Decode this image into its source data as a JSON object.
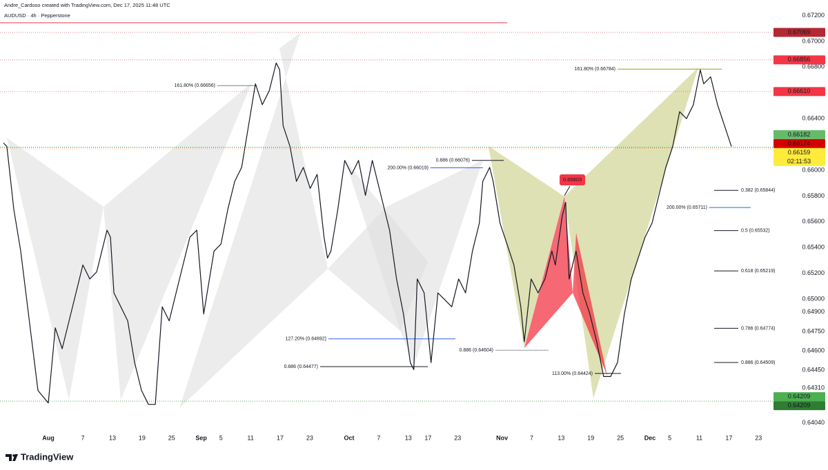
{
  "chart_data": {
    "type": "line",
    "title": "Andre_Cardoso created with TradingView.com, Dec 17, 2025 11:48 UTC",
    "brand": "TradingView",
    "x": [
      -9.1,
      -8.4,
      -7.0,
      -5.6,
      -3.5,
      -2.1,
      0,
      1.4,
      2.8,
      4.2,
      5.6,
      7.0,
      8.4,
      9.8,
      11.2,
      11.9,
      12.6,
      13.3,
      14.7,
      16.1,
      17.5,
      18.9,
      20.3,
      21.7,
      23.1,
      24.5,
      25.9,
      27.3,
      28.7,
      30.1,
      31.5,
      32.2,
      33.6,
      35.0,
      36.4,
      37.8,
      39.2,
      40.6,
      41.3,
      42.0,
      43.4,
      44.8,
      46.2,
      46.9,
      47.6,
      49.0,
      50.3,
      51.7,
      53.1,
      54.5,
      55.9,
      56.6,
      57.3,
      58.7,
      60.1,
      61.5,
      62.9,
      64.3,
      65.7,
      66.4,
      67.8,
      69.2,
      70.6,
      72.0,
      73.4,
      74.1,
      74.8,
      76.2,
      77.6,
      79.0,
      80.4,
      81.8,
      83.2,
      84.6,
      86.0,
      87.4,
      88.1,
      89.5,
      90.2,
      91.6,
      93.0,
      94.4,
      95.8,
      96.5,
      97.9,
      99.3,
      100.7,
      102.1,
      102.8,
      104.2,
      104.9,
      105.6,
      107.0,
      108.4,
      109.8,
      111.2,
      112.6,
      114.0,
      115.4,
      116.8,
      118.2,
      119.6,
      121.0,
      122.4,
      123.8,
      125.2,
      126.6,
      128.0,
      129.4,
      130.8,
      132.2,
      132.9,
      134.3,
      135.7,
      137.1,
      138.5
    ],
    "series": [
      {
        "name": "AUDUSD · 4h · Pepperstone",
        "color": "#131722",
        "values": [
          0.66211,
          0.66184,
          0.65697,
          0.65373,
          0.64724,
          0.64292,
          0.64195,
          0.64778,
          0.64616,
          0.64832,
          0.65049,
          0.65265,
          0.65157,
          0.65211,
          0.65427,
          0.65535,
          0.65481,
          0.65049,
          0.64941,
          0.64832,
          0.64508,
          0.64292,
          0.64184,
          0.64184,
          0.64941,
          0.64832,
          0.65049,
          0.65265,
          0.65481,
          0.65535,
          0.64886,
          0.65049,
          0.65373,
          0.65427,
          0.65697,
          0.65914,
          0.66022,
          0.66346,
          0.66508,
          0.6667,
          0.66508,
          0.66616,
          0.66832,
          0.66778,
          0.66346,
          0.66184,
          0.65914,
          0.66022,
          0.65859,
          0.65968,
          0.65481,
          0.65319,
          0.65373,
          0.65697,
          0.66076,
          0.65968,
          0.66076,
          0.65805,
          0.66076,
          0.65968,
          0.65751,
          0.65535,
          0.65157,
          0.64886,
          0.64508,
          0.64454,
          0.65157,
          0.65049,
          0.64508,
          0.65049,
          0.64995,
          0.64941,
          0.65157,
          0.65049,
          0.65373,
          0.65589,
          0.65914,
          0.66022,
          0.65914,
          0.65589,
          0.65427,
          0.65265,
          0.64941,
          0.6467,
          0.65157,
          0.65049,
          0.65157,
          0.65373,
          0.65265,
          0.65643,
          0.65751,
          0.65157,
          0.65373,
          0.65049,
          0.64886,
          0.6467,
          0.644,
          0.644,
          0.64508,
          0.64886,
          0.65157,
          0.65319,
          0.65481,
          0.65589,
          0.65805,
          0.66022,
          0.66184,
          0.66454,
          0.664,
          0.66508,
          0.66778,
          0.6667,
          0.66724,
          0.66508,
          0.66346,
          0.66184
        ]
      }
    ],
    "xlim": [
      -9.8,
      146.9
    ],
    "xticks": [
      {
        "value": 0,
        "label": "Aug"
      },
      7,
      13,
      19,
      25,
      {
        "value": 31,
        "label": "Sep"
      },
      {
        "value": 35,
        "label": "5"
      },
      {
        "value": 41,
        "label": "11"
      },
      {
        "value": 47,
        "label": "17"
      },
      {
        "value": 53,
        "label": "23"
      },
      {
        "value": 61,
        "label": "Oct"
      },
      {
        "value": 67,
        "label": "7"
      },
      {
        "value": 73,
        "label": "13"
      },
      {
        "value": 77,
        "label": "17"
      },
      {
        "value": 83,
        "label": "23"
      },
      {
        "value": 92,
        "label": "Nov"
      },
      {
        "value": 98,
        "label": "7"
      },
      {
        "value": 104,
        "label": "13"
      },
      {
        "value": 110,
        "label": "19"
      },
      {
        "value": 116,
        "label": "25"
      },
      {
        "value": 122,
        "label": "Dec"
      },
      {
        "value": 126,
        "label": "5"
      },
      {
        "value": 132,
        "label": "11"
      },
      {
        "value": 138,
        "label": "17"
      },
      {
        "value": 144,
        "label": "23"
      }
    ],
    "ylim": [
      0.6398,
      0.6732
    ],
    "yticks": [
      {
        "value": 0.672,
        "label": "0.67200"
      },
      {
        "value": 0.67,
        "label": "0.67000"
      },
      {
        "value": 0.668,
        "label": "0.66800"
      },
      {
        "value": 0.664,
        "label": "0.66400"
      },
      {
        "value": 0.66,
        "label": "0.66000"
      },
      {
        "value": 0.658,
        "label": "0.65800"
      },
      {
        "value": 0.656,
        "label": "0.65600"
      },
      {
        "value": 0.654,
        "label": "0.65400"
      },
      {
        "value": 0.652,
        "label": "0.65200"
      },
      {
        "value": 0.65,
        "label": "0.65000"
      },
      {
        "value": 0.649,
        "label": "0.64900"
      },
      {
        "value": 0.6475,
        "label": "0.64750"
      },
      {
        "value": 0.646,
        "label": "0.64600"
      },
      {
        "value": 0.6445,
        "label": "0.64450"
      },
      {
        "value": 0.6431,
        "label": "0.64310"
      },
      {
        "value": 0.6404,
        "label": "0.64040"
      }
    ],
    "grid": false,
    "price_tags": [
      {
        "value": 0.67069,
        "label": "0.67069",
        "color": "#b22833",
        "text_color": "#ffffff"
      },
      {
        "value": 0.66856,
        "label": "0.66856",
        "color": "#f23645",
        "text_color": "#ffffff"
      },
      {
        "value": 0.6661,
        "label": "0.66610",
        "color": "#f23645",
        "text_color": "#ffffff"
      },
      {
        "value": 0.66182,
        "label": "0.66182",
        "color": "#66bb6a",
        "text_color": "#ffffff"
      },
      {
        "value": 0.66174,
        "label": "0.66174",
        "color": "#d50000",
        "text_color": "#ffffff"
      },
      {
        "value": 0.66159,
        "label": "0.66159",
        "color": "#ffeb3b",
        "text_color": "#131722"
      },
      {
        "value": 0.64209,
        "label": "0.64209",
        "color": "#4caf50",
        "text_color": "#ffffff"
      },
      {
        "value": 0.64209,
        "label": "0.64209",
        "color": "#2e7d32",
        "text_color": "#ffffff"
      }
    ],
    "countdown": "02:11:53",
    "annotations": [
      {
        "label": "161.80% (0.66656)",
        "value": 0.66656,
        "color": "#787b86"
      },
      {
        "label": "200.00% (0.66019)",
        "value": 0.66019,
        "color": "#2962ff"
      },
      {
        "label": "0.886 (0.66076)",
        "value": 0.66076,
        "color": "#131722"
      },
      {
        "label": "127.20% (0.64692)",
        "value": 0.64692,
        "color": "#2962ff"
      },
      {
        "label": "0.886 (0.64477)",
        "value": 0.64477,
        "color": "#131722"
      },
      {
        "label": "0.886 (0.64604)",
        "value": 0.64604,
        "color": "#9598a1"
      },
      {
        "label": "113.00% (0.64424)",
        "value": 0.64424,
        "color": "#131722"
      },
      {
        "label": "161.80% (0.66784)",
        "value": 0.66784,
        "color": "#9a9a1e"
      },
      {
        "label": "200.00% (0.65711)",
        "value": 0.65711,
        "color": "#2962ff"
      },
      {
        "label": "0.382 (0.65844)",
        "value": 0.65844,
        "color": "#131722"
      },
      {
        "label": "0.5 (0.65532)",
        "value": 0.65532,
        "color": "#131722"
      },
      {
        "label": "0.618 (0.65219)",
        "value": 0.65219,
        "color": "#131722"
      },
      {
        "label": "0.786 (0.64774)",
        "value": 0.64774,
        "color": "#131722"
      },
      {
        "label": "0.886 (0.64509)",
        "value": 0.64509,
        "color": "#131722"
      }
    ],
    "callout": {
      "label": "0.65803",
      "value": 0.65803,
      "color": "#f23645"
    }
  }
}
